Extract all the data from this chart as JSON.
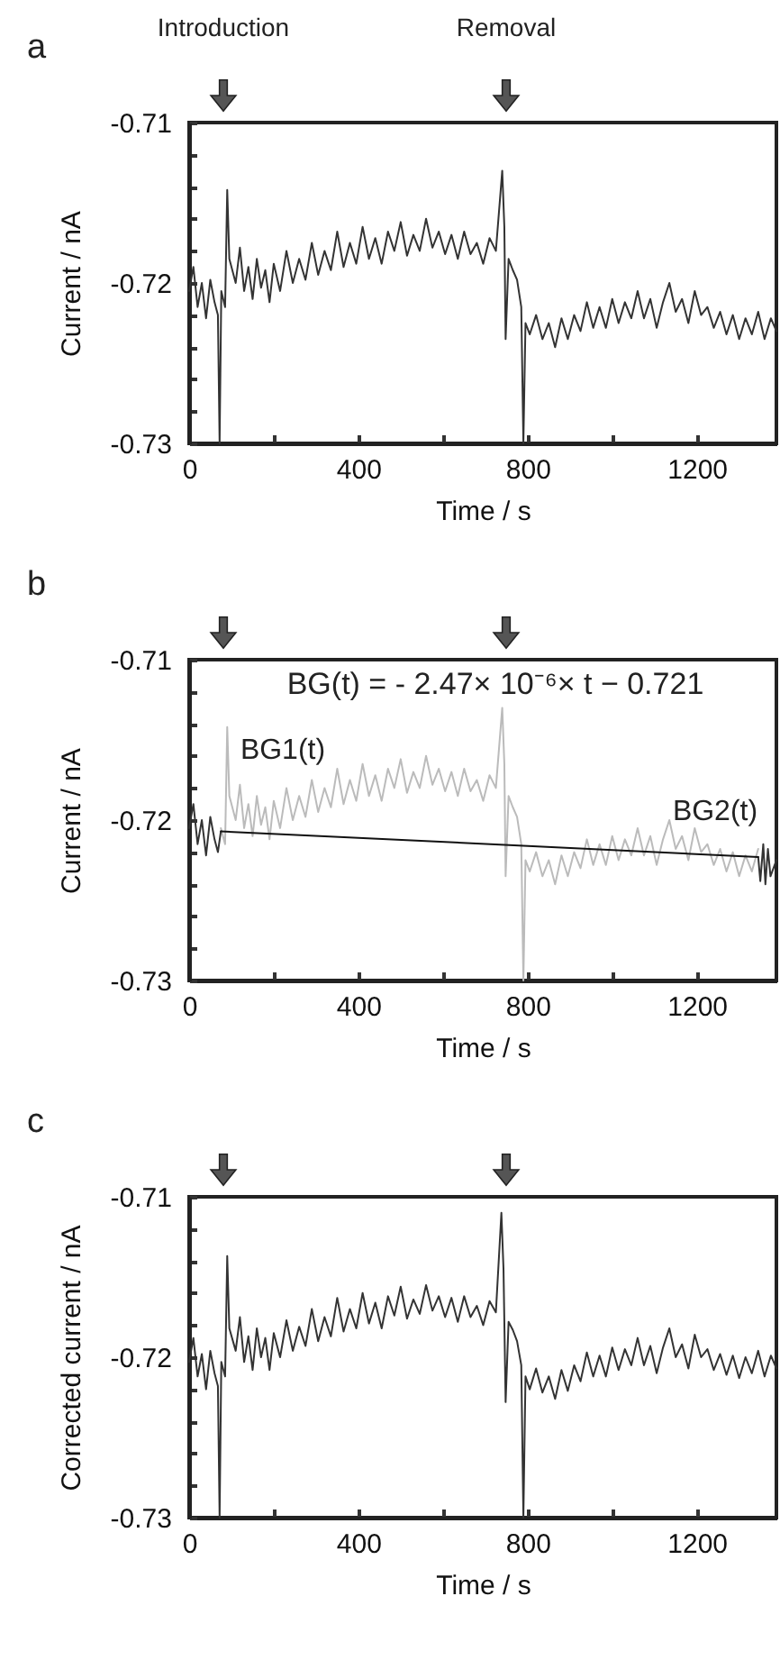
{
  "chart_data": [
    {
      "type": "line",
      "title": "a",
      "xlabel": "Time / s",
      "ylabel": "Current / nA",
      "xlim": [
        0,
        1388
      ],
      "ylim": [
        -0.73,
        -0.71
      ],
      "xticks": [
        0,
        {
          "value": 200,
          "label": null
        },
        400,
        {
          "value": 600,
          "label": null
        },
        800,
        {
          "value": 1000,
          "label": null
        },
        1200
      ],
      "yticks": [
        -0.73,
        {
          "value": -0.728,
          "label": null
        },
        {
          "value": -0.726,
          "label": null
        },
        {
          "value": -0.724,
          "label": null
        },
        {
          "value": -0.722,
          "label": null
        },
        -0.72,
        {
          "value": -0.718,
          "label": null
        },
        {
          "value": -0.716,
          "label": null
        },
        {
          "value": -0.714,
          "label": null
        },
        {
          "value": -0.712,
          "label": null
        },
        -0.71
      ],
      "annotations": [
        "Introduction",
        "Removal"
      ],
      "series": [
        {
          "color": "#333333",
          "x": [
            0,
            10,
            20,
            30,
            40,
            50,
            60,
            68,
            72,
            76,
            85,
            90,
            95,
            110,
            120,
            130,
            140,
            150,
            160,
            170,
            180,
            190,
            200,
            215,
            230,
            245,
            260,
            275,
            290,
            305,
            320,
            335,
            350,
            365,
            380,
            395,
            410,
            425,
            440,
            455,
            470,
            485,
            500,
            515,
            530,
            545,
            560,
            575,
            590,
            605,
            620,
            635,
            650,
            665,
            680,
            695,
            710,
            725,
            740,
            745,
            748,
            755,
            765,
            775,
            785,
            790,
            795,
            805,
            820,
            835,
            850,
            865,
            880,
            895,
            910,
            925,
            940,
            955,
            970,
            985,
            1000,
            1015,
            1030,
            1045,
            1060,
            1075,
            1090,
            1105,
            1120,
            1135,
            1150,
            1165,
            1180,
            1195,
            1210,
            1225,
            1240,
            1255,
            1270,
            1285,
            1300,
            1315,
            1330,
            1345,
            1360,
            1375,
            1388
          ],
          "values": [
            -0.7205,
            -0.719,
            -0.7215,
            -0.72,
            -0.7222,
            -0.7198,
            -0.7212,
            -0.722,
            -0.73,
            -0.7205,
            -0.7215,
            -0.7142,
            -0.7185,
            -0.72,
            -0.7178,
            -0.7205,
            -0.719,
            -0.721,
            -0.7185,
            -0.7203,
            -0.7192,
            -0.7212,
            -0.7188,
            -0.7205,
            -0.718,
            -0.72,
            -0.7185,
            -0.7198,
            -0.7175,
            -0.7195,
            -0.718,
            -0.7192,
            -0.7168,
            -0.719,
            -0.7175,
            -0.7188,
            -0.7165,
            -0.7185,
            -0.7172,
            -0.7188,
            -0.7168,
            -0.718,
            -0.7162,
            -0.7183,
            -0.717,
            -0.718,
            -0.716,
            -0.7178,
            -0.7168,
            -0.7182,
            -0.717,
            -0.7185,
            -0.7168,
            -0.7182,
            -0.7175,
            -0.7188,
            -0.7172,
            -0.718,
            -0.713,
            -0.7165,
            -0.7235,
            -0.7185,
            -0.7192,
            -0.7198,
            -0.7215,
            -0.73,
            -0.7225,
            -0.7232,
            -0.722,
            -0.7235,
            -0.7225,
            -0.724,
            -0.7222,
            -0.7235,
            -0.722,
            -0.723,
            -0.7212,
            -0.7228,
            -0.7215,
            -0.7228,
            -0.721,
            -0.7225,
            -0.7212,
            -0.7222,
            -0.7205,
            -0.7222,
            -0.721,
            -0.7228,
            -0.7212,
            -0.72,
            -0.7218,
            -0.721,
            -0.7225,
            -0.7205,
            -0.722,
            -0.7215,
            -0.7228,
            -0.7218,
            -0.7232,
            -0.722,
            -0.7235,
            -0.7222,
            -0.7232,
            -0.7218,
            -0.7235,
            -0.7222,
            -0.723
          ]
        }
      ]
    },
    {
      "type": "line",
      "title": "b",
      "xlabel": "Time / s",
      "ylabel": "Current / nA",
      "xlim": [
        0,
        1388
      ],
      "ylim": [
        -0.73,
        -0.71
      ],
      "xticks": [
        0,
        {
          "value": 200,
          "label": null
        },
        400,
        {
          "value": 600,
          "label": null
        },
        800,
        {
          "value": 1000,
          "label": null
        },
        1200
      ],
      "yticks": [
        -0.73,
        {
          "value": -0.728,
          "label": null
        },
        {
          "value": -0.726,
          "label": null
        },
        {
          "value": -0.724,
          "label": null
        },
        {
          "value": -0.722,
          "label": null
        },
        -0.72,
        {
          "value": -0.718,
          "label": null
        },
        {
          "value": -0.716,
          "label": null
        },
        {
          "value": -0.714,
          "label": null
        },
        {
          "value": -0.712,
          "label": null
        },
        -0.71
      ],
      "annotations": [
        "BG(t) = - 2.47× 10⁻⁶× t − 0.721",
        "BG1(t)",
        "BG2(t)"
      ],
      "series": [
        {
          "color": "#bbbbbb",
          "x": [
            75,
            85,
            90,
            95,
            110,
            120,
            130,
            140,
            150,
            160,
            170,
            180,
            190,
            200,
            215,
            230,
            245,
            260,
            275,
            290,
            305,
            320,
            335,
            350,
            365,
            380,
            395,
            410,
            425,
            440,
            455,
            470,
            485,
            500,
            515,
            530,
            545,
            560,
            575,
            590,
            605,
            620,
            635,
            650,
            665,
            680,
            695,
            710,
            725,
            740,
            745,
            748,
            755,
            765,
            775,
            785,
            790,
            795,
            805,
            820,
            835,
            850,
            865,
            880,
            895,
            910,
            925,
            940,
            955,
            970,
            985,
            1000,
            1015,
            1030,
            1045,
            1060,
            1075,
            1090,
            1105,
            1120,
            1135,
            1150,
            1165,
            1180,
            1195,
            1210,
            1225,
            1240,
            1255,
            1270,
            1285,
            1300,
            1315,
            1330,
            1345
          ],
          "values": [
            -0.7205,
            -0.7215,
            -0.7142,
            -0.7185,
            -0.72,
            -0.7178,
            -0.7205,
            -0.719,
            -0.721,
            -0.7185,
            -0.7203,
            -0.7192,
            -0.7212,
            -0.7188,
            -0.7205,
            -0.718,
            -0.72,
            -0.7185,
            -0.7198,
            -0.7175,
            -0.7195,
            -0.718,
            -0.7192,
            -0.7168,
            -0.719,
            -0.7175,
            -0.7188,
            -0.7165,
            -0.7185,
            -0.7172,
            -0.7188,
            -0.7168,
            -0.718,
            -0.7162,
            -0.7183,
            -0.717,
            -0.718,
            -0.716,
            -0.7178,
            -0.7168,
            -0.7182,
            -0.717,
            -0.7185,
            -0.7168,
            -0.7182,
            -0.7175,
            -0.7188,
            -0.7172,
            -0.718,
            -0.713,
            -0.7165,
            -0.7235,
            -0.7185,
            -0.7192,
            -0.7198,
            -0.7215,
            -0.73,
            -0.7225,
            -0.7232,
            -0.722,
            -0.7235,
            -0.7225,
            -0.724,
            -0.7222,
            -0.7235,
            -0.722,
            -0.723,
            -0.7212,
            -0.7228,
            -0.7215,
            -0.7228,
            -0.721,
            -0.7225,
            -0.7212,
            -0.7222,
            -0.7205,
            -0.7222,
            -0.721,
            -0.7228,
            -0.7212,
            -0.72,
            -0.7218,
            -0.721,
            -0.7225,
            -0.7205,
            -0.722,
            -0.7215,
            -0.7228,
            -0.7218,
            -0.7232,
            -0.722,
            -0.7235,
            -0.7222,
            -0.7232,
            -0.7218
          ]
        },
        {
          "color": "#333333",
          "x": [
            0,
            10,
            20,
            30,
            40,
            50,
            60,
            68,
            75,
            700,
            1345,
            1350,
            1357,
            1362,
            1368,
            1374,
            1388
          ],
          "values": [
            -0.7205,
            -0.719,
            -0.7215,
            -0.72,
            -0.7222,
            -0.7198,
            -0.7212,
            -0.722,
            -0.7207,
            null,
            -0.7223,
            -0.7238,
            -0.7215,
            -0.724,
            -0.7218,
            -0.7235,
            -0.7225
          ]
        },
        {
          "color": "#111111",
          "x": [
            75,
            1345
          ],
          "values": [
            -0.7207,
            -0.7223
          ]
        }
      ]
    },
    {
      "type": "line",
      "title": "c",
      "xlabel": "Time / s",
      "ylabel": "Corrected current / nA",
      "xlim": [
        0,
        1388
      ],
      "ylim": [
        -0.73,
        -0.71
      ],
      "xticks": [
        0,
        {
          "value": 200,
          "label": null
        },
        400,
        {
          "value": 600,
          "label": null
        },
        800,
        {
          "value": 1000,
          "label": null
        },
        1200
      ],
      "yticks": [
        -0.73,
        {
          "value": -0.728,
          "label": null
        },
        {
          "value": -0.726,
          "label": null
        },
        {
          "value": -0.724,
          "label": null
        },
        {
          "value": -0.722,
          "label": null
        },
        -0.72,
        {
          "value": -0.718,
          "label": null
        },
        {
          "value": -0.716,
          "label": null
        },
        {
          "value": -0.714,
          "label": null
        },
        {
          "value": -0.712,
          "label": null
        },
        -0.71
      ],
      "series": [
        {
          "color": "#333333",
          "x": [
            0,
            10,
            20,
            30,
            40,
            50,
            60,
            68,
            72,
            76,
            85,
            90,
            95,
            110,
            120,
            130,
            140,
            150,
            160,
            170,
            180,
            190,
            200,
            215,
            230,
            245,
            260,
            275,
            290,
            305,
            320,
            335,
            350,
            365,
            380,
            395,
            410,
            425,
            440,
            455,
            470,
            485,
            500,
            515,
            530,
            545,
            560,
            575,
            590,
            605,
            620,
            635,
            650,
            665,
            680,
            695,
            710,
            725,
            738,
            743,
            748,
            755,
            765,
            775,
            785,
            790,
            795,
            805,
            820,
            835,
            850,
            865,
            880,
            895,
            910,
            925,
            940,
            955,
            970,
            985,
            1000,
            1015,
            1030,
            1045,
            1060,
            1075,
            1090,
            1105,
            1120,
            1135,
            1150,
            1165,
            1180,
            1195,
            1210,
            1225,
            1240,
            1255,
            1270,
            1285,
            1300,
            1315,
            1330,
            1345,
            1360,
            1375,
            1388
          ],
          "values": [
            -0.7203,
            -0.7188,
            -0.7212,
            -0.7198,
            -0.722,
            -0.7196,
            -0.721,
            -0.7218,
            -0.73,
            -0.7203,
            -0.7212,
            -0.7137,
            -0.7182,
            -0.7196,
            -0.7175,
            -0.7203,
            -0.7187,
            -0.7208,
            -0.7182,
            -0.72,
            -0.7188,
            -0.7208,
            -0.7185,
            -0.72,
            -0.7177,
            -0.7196,
            -0.7181,
            -0.7193,
            -0.717,
            -0.719,
            -0.7175,
            -0.7187,
            -0.7163,
            -0.7184,
            -0.717,
            -0.7182,
            -0.716,
            -0.7179,
            -0.7166,
            -0.7182,
            -0.7162,
            -0.7174,
            -0.7156,
            -0.7176,
            -0.7164,
            -0.7173,
            -0.7155,
            -0.7171,
            -0.7162,
            -0.7175,
            -0.7163,
            -0.7178,
            -0.7162,
            -0.7175,
            -0.7168,
            -0.718,
            -0.7165,
            -0.7172,
            -0.711,
            -0.7145,
            -0.7228,
            -0.7178,
            -0.7183,
            -0.719,
            -0.7205,
            -0.73,
            -0.7212,
            -0.722,
            -0.7207,
            -0.7222,
            -0.7212,
            -0.7226,
            -0.7208,
            -0.7221,
            -0.7205,
            -0.7215,
            -0.7197,
            -0.7212,
            -0.7199,
            -0.7212,
            -0.7194,
            -0.7208,
            -0.7195,
            -0.7205,
            -0.7188,
            -0.7205,
            -0.7193,
            -0.721,
            -0.7194,
            -0.7182,
            -0.72,
            -0.7192,
            -0.7207,
            -0.7186,
            -0.72,
            -0.7195,
            -0.7208,
            -0.7198,
            -0.7211,
            -0.7199,
            -0.7213,
            -0.72,
            -0.721,
            -0.7196,
            -0.7212,
            -0.7199,
            -0.7207
          ]
        }
      ]
    }
  ]
}
